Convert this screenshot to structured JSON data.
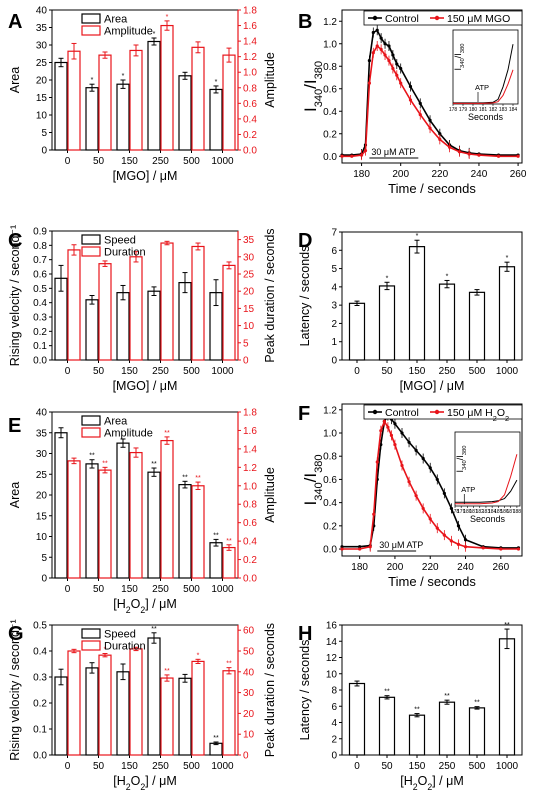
{
  "figure": {
    "colors": {
      "black": "#000000",
      "red": "#e8141a"
    },
    "panels": [
      {
        "letter": "A"
      },
      {
        "letter": "B"
      },
      {
        "letter": "C"
      },
      {
        "letter": "D"
      },
      {
        "letter": "E"
      },
      {
        "letter": "F"
      },
      {
        "letter": "G"
      },
      {
        "letter": "H"
      }
    ]
  },
  "chart_data": [
    {
      "panel": "A",
      "type": "bar",
      "categories": [
        "0",
        "50",
        "150",
        "250",
        "500",
        "1000"
      ],
      "xlabel": "[MGO]   /   μM",
      "ylabel": "Area",
      "ylabel_right": "Amplitude",
      "ylim": [
        0,
        40
      ],
      "yticks": [
        "0",
        "5",
        "10",
        "15",
        "20",
        "25",
        "30",
        "35",
        "40"
      ],
      "ylim_right": [
        0,
        1.8
      ],
      "yticks_right": [
        "0.0",
        "0.2",
        "0.4",
        "0.6",
        "0.8",
        "1.0",
        "1.2",
        "1.4",
        "1.6",
        "1.8"
      ],
      "legend_position": "top-left",
      "series": [
        {
          "name": "Area",
          "axis": "left",
          "values": [
            25,
            17.8,
            18.8,
            31,
            21.2,
            17.3
          ],
          "errors": [
            1.2,
            1.0,
            1.2,
            1.0,
            1.0,
            1.0
          ],
          "stars": [
            "",
            "*",
            "*",
            "*",
            "",
            "*"
          ]
        },
        {
          "name": "Amplitude",
          "axis": "right",
          "values": [
            1.27,
            1.22,
            1.28,
            1.6,
            1.32,
            1.22
          ],
          "errors": [
            0.1,
            0.04,
            0.07,
            0.06,
            0.07,
            0.09
          ],
          "stars": [
            "",
            "",
            "",
            "*",
            "",
            ""
          ]
        }
      ]
    },
    {
      "panel": "B",
      "type": "line",
      "xlabel": "Time   /   seconds",
      "ylabel": "I340/I380",
      "ylabel_main": "I",
      "ylabel_sub1": "340",
      "ylabel_mid": "/I",
      "ylabel_sub2": "380",
      "xlim": [
        170,
        262
      ],
      "xticks": [
        "180",
        "200",
        "220",
        "240",
        "260"
      ],
      "ylim": [
        -0.06,
        1.3
      ],
      "yticks": [
        "0.0",
        "0.2",
        "0.4",
        "0.6",
        "0.8",
        "1.0",
        "1.2"
      ],
      "annotation": "30 μM ATP",
      "legend_position": "top",
      "series": [
        {
          "name": "Control",
          "color": "#000000",
          "x": [
            170,
            175,
            180,
            182,
            184,
            186,
            188,
            190,
            192,
            194,
            196,
            198,
            200,
            205,
            210,
            215,
            220,
            225,
            230,
            235,
            240,
            250,
            260
          ],
          "y": [
            0.01,
            0.01,
            0.02,
            0.1,
            0.85,
            1.1,
            1.12,
            1.05,
            1.0,
            0.98,
            0.9,
            0.82,
            0.78,
            0.62,
            0.47,
            0.32,
            0.2,
            0.1,
            0.05,
            0.03,
            0.02,
            0.01,
            0.01
          ]
        },
        {
          "name": "150 μM MGO",
          "color": "#e8141a",
          "x": [
            170,
            175,
            180,
            182,
            184,
            186,
            188,
            190,
            192,
            194,
            196,
            198,
            200,
            205,
            210,
            215,
            220,
            225,
            230,
            235,
            240,
            250,
            260
          ],
          "y": [
            0.0,
            0.0,
            0.01,
            0.05,
            0.65,
            0.92,
            0.98,
            0.95,
            0.9,
            0.85,
            0.78,
            0.72,
            0.65,
            0.5,
            0.37,
            0.25,
            0.15,
            0.08,
            0.04,
            0.02,
            0.01,
            0.0,
            0.0
          ]
        }
      ],
      "inset": {
        "xlabel": "Seconds",
        "ylabel": "I340/I380",
        "ylabel_main": "I",
        "ylabel_sub1": "340",
        "ylabel_mid": "/I",
        "ylabel_sub2": "380",
        "annotation": "ATP",
        "xlim": [
          178,
          184.5
        ],
        "xticks": [
          "178",
          "179",
          "180",
          "181",
          "182",
          "183",
          "184"
        ],
        "ylim": [
          0,
          1.3
        ],
        "series": [
          {
            "name": "Control",
            "x": [
              178,
              179,
              180,
              181,
              182,
              182.5,
              183,
              183.5,
              184
            ],
            "y": [
              0.02,
              0.02,
              0.02,
              0.02,
              0.03,
              0.08,
              0.3,
              0.6,
              1.05
            ]
          },
          {
            "name": "150 μM MGO",
            "x": [
              178,
              179,
              180,
              181,
              182,
              182.5,
              183,
              183.5,
              184
            ],
            "y": [
              0.01,
              0.01,
              0.01,
              0.01,
              0.02,
              0.04,
              0.15,
              0.35,
              0.6
            ]
          }
        ]
      }
    },
    {
      "panel": "C",
      "type": "bar",
      "categories": [
        "0",
        "50",
        "150",
        "250",
        "500",
        "1000"
      ],
      "xlabel": "[MGO]   /   μM",
      "ylabel": "Rising velocity / second⁻¹",
      "ylabel_right": "Peak duration / seconds",
      "ylim": [
        0,
        0.9
      ],
      "yticks": [
        "0.0",
        "0.1",
        "0.2",
        "0.3",
        "0.4",
        "0.5",
        "0.6",
        "0.7",
        "0.8",
        "0.9"
      ],
      "ylim_right": [
        0,
        37.5
      ],
      "yticks_right": [
        "0",
        "5",
        "10",
        "15",
        "20",
        "25",
        "30",
        "35"
      ],
      "legend_position": "top-left",
      "series": [
        {
          "name": "Speed",
          "axis": "left",
          "values": [
            0.57,
            0.42,
            0.47,
            0.48,
            0.54,
            0.47
          ],
          "errors": [
            0.09,
            0.03,
            0.05,
            0.03,
            0.07,
            0.09
          ],
          "stars": [
            "",
            "",
            "",
            "",
            "",
            ""
          ]
        },
        {
          "name": "Duration",
          "axis": "right",
          "values": [
            32,
            28,
            30,
            34,
            33,
            27.5
          ],
          "errors": [
            1.5,
            0.8,
            1.5,
            0.5,
            1.0,
            1.0
          ],
          "stars": [
            "",
            "",
            "",
            "",
            "",
            ""
          ]
        }
      ]
    },
    {
      "panel": "D",
      "type": "bar",
      "categories": [
        "0",
        "50",
        "150",
        "250",
        "500",
        "1000"
      ],
      "xlabel": "[MGO]   /   μM",
      "ylabel": "Latency   /   seconds",
      "ylim": [
        0,
        7
      ],
      "yticks": [
        "0",
        "1",
        "2",
        "3",
        "4",
        "5",
        "6",
        "7"
      ],
      "series": [
        {
          "name": "",
          "values": [
            3.1,
            4.05,
            6.2,
            4.15,
            3.7,
            5.1
          ],
          "errors": [
            0.12,
            0.2,
            0.35,
            0.2,
            0.15,
            0.25
          ],
          "stars": [
            "",
            "*",
            "*",
            "*",
            "",
            "*"
          ]
        }
      ]
    },
    {
      "panel": "E",
      "type": "bar",
      "categories": [
        "0",
        "50",
        "150",
        "250",
        "500",
        "1000"
      ],
      "xlabel": "[H2O2]   /   μM",
      "ylabel": "Area",
      "ylabel_right": "Amplitude",
      "ylim": [
        0,
        40
      ],
      "yticks": [
        "0",
        "5",
        "10",
        "15",
        "20",
        "25",
        "30",
        "35",
        "40"
      ],
      "ylim_right": [
        0,
        1.8
      ],
      "yticks_right": [
        "0.0",
        "0.2",
        "0.4",
        "0.6",
        "0.8",
        "1.0",
        "1.2",
        "1.4",
        "1.6",
        "1.8"
      ],
      "legend_position": "top-left",
      "series": [
        {
          "name": "Area",
          "axis": "left",
          "values": [
            35,
            27.5,
            32.5,
            25.5,
            22.5,
            8.5
          ],
          "errors": [
            1.2,
            1.0,
            1.0,
            1.0,
            0.8,
            0.8
          ],
          "stars": [
            "",
            "**",
            "",
            "**",
            "**",
            "**"
          ]
        },
        {
          "name": "Amplitude",
          "axis": "right",
          "values": [
            1.27,
            1.17,
            1.36,
            1.49,
            1.0,
            0.33
          ],
          "errors": [
            0.03,
            0.03,
            0.05,
            0.04,
            0.04,
            0.03
          ],
          "stars": [
            "",
            "**",
            "",
            "**",
            "**",
            "**"
          ]
        }
      ]
    },
    {
      "panel": "F",
      "type": "line",
      "xlabel": "Time   /   seconds",
      "ylabel": "I340/I380",
      "ylabel_main": "I",
      "ylabel_sub1": "340",
      "ylabel_mid": "/I",
      "ylabel_sub2": "380",
      "xlim": [
        170,
        272
      ],
      "xticks": [
        "180",
        "200",
        "220",
        "240",
        "260"
      ],
      "ylim": [
        -0.06,
        1.25
      ],
      "yticks": [
        "0.0",
        "0.2",
        "0.4",
        "0.6",
        "0.8",
        "1.0",
        "1.2"
      ],
      "annotation": "30 μM ATP",
      "legend_position": "top",
      "series": [
        {
          "name": "Control",
          "color": "#000000",
          "x": [
            170,
            180,
            186,
            188,
            190,
            192,
            194,
            196,
            198,
            200,
            204,
            208,
            212,
            216,
            220,
            224,
            228,
            232,
            236,
            240,
            250,
            260,
            270
          ],
          "y": [
            0.02,
            0.02,
            0.03,
            0.2,
            0.6,
            0.9,
            1.1,
            1.15,
            1.12,
            1.08,
            1.0,
            0.92,
            0.85,
            0.78,
            0.7,
            0.6,
            0.48,
            0.35,
            0.2,
            0.08,
            0.02,
            0.01,
            0.01
          ]
        },
        {
          "name": "150 μM H2O2",
          "color": "#e8141a",
          "x": [
            170,
            180,
            186,
            188,
            190,
            192,
            194,
            196,
            198,
            200,
            204,
            208,
            212,
            216,
            220,
            224,
            228,
            232,
            236,
            240,
            250,
            260,
            270
          ],
          "y": [
            0.0,
            0.0,
            0.02,
            0.3,
            0.75,
            1.02,
            1.1,
            1.05,
            0.98,
            0.9,
            0.72,
            0.58,
            0.46,
            0.35,
            0.26,
            0.18,
            0.12,
            0.07,
            0.04,
            0.02,
            0.01,
            0.0,
            0.0
          ]
        }
      ],
      "inset": {
        "xlabel": "Seconds",
        "ylabel": "I340/I380",
        "ylabel_main": "I",
        "ylabel_sub1": "340",
        "ylabel_mid": "/I",
        "ylabel_sub2": "380",
        "annotation": "ATP",
        "xlim": [
          178,
          188.5
        ],
        "xticks": [
          "178",
          "179",
          "180",
          "181",
          "182",
          "183",
          "184",
          "185",
          "186",
          "187",
          "188"
        ],
        "ylim": [
          0,
          1.0
        ],
        "series": [
          {
            "name": "Control",
            "x": [
              178,
              180,
              182,
              184,
              185,
              186,
              187,
              188
            ],
            "y": [
              0.05,
              0.05,
              0.05,
              0.06,
              0.07,
              0.1,
              0.2,
              0.35
            ]
          },
          {
            "name": "150 μM H2O2",
            "x": [
              178,
              180,
              182,
              184,
              185,
              186,
              187,
              188
            ],
            "y": [
              0.03,
              0.03,
              0.03,
              0.04,
              0.06,
              0.15,
              0.4,
              0.7
            ]
          }
        ]
      }
    },
    {
      "panel": "G",
      "type": "bar",
      "categories": [
        "0",
        "50",
        "150",
        "250",
        "500",
        "1000"
      ],
      "xlabel": "[H2O2]   /   μM",
      "ylabel": "Rising velocity / second⁻¹",
      "ylabel_right": "Peak duration / seconds",
      "ylim": [
        0,
        0.5
      ],
      "yticks": [
        "0.0",
        "0.1",
        "0.2",
        "0.3",
        "0.4",
        "0.5"
      ],
      "ylim_right": [
        0,
        62.5
      ],
      "yticks_right": [
        "0",
        "10",
        "20",
        "30",
        "40",
        "50",
        "60"
      ],
      "legend_position": "top-left",
      "series": [
        {
          "name": "Speed",
          "axis": "left",
          "values": [
            0.3,
            0.335,
            0.32,
            0.45,
            0.295,
            0.045
          ],
          "errors": [
            0.03,
            0.02,
            0.03,
            0.02,
            0.015,
            0.005
          ],
          "stars": [
            "",
            "",
            "",
            "**",
            "",
            "**"
          ]
        },
        {
          "name": "Duration",
          "axis": "right",
          "values": [
            50,
            48,
            51,
            37,
            45,
            40.5
          ],
          "errors": [
            0.8,
            0.8,
            0.8,
            1.5,
            1.0,
            1.5
          ],
          "stars": [
            "",
            "*",
            "",
            "**",
            "*",
            "**"
          ]
        }
      ]
    },
    {
      "panel": "H",
      "type": "bar",
      "categories": [
        "0",
        "50",
        "150",
        "250",
        "500",
        "1000"
      ],
      "xlabel": "[H2O2]   /   μM",
      "ylabel": "Latency   /   seconds",
      "ylim": [
        0,
        16
      ],
      "yticks": [
        "0",
        "2",
        "4",
        "6",
        "8",
        "10",
        "12",
        "14",
        "16"
      ],
      "series": [
        {
          "name": "",
          "values": [
            8.8,
            7.1,
            4.9,
            6.5,
            5.8,
            14.3
          ],
          "errors": [
            0.3,
            0.2,
            0.2,
            0.25,
            0.15,
            1.2
          ],
          "stars": [
            "",
            "**",
            "**",
            "**",
            "**",
            "**"
          ]
        }
      ]
    }
  ]
}
